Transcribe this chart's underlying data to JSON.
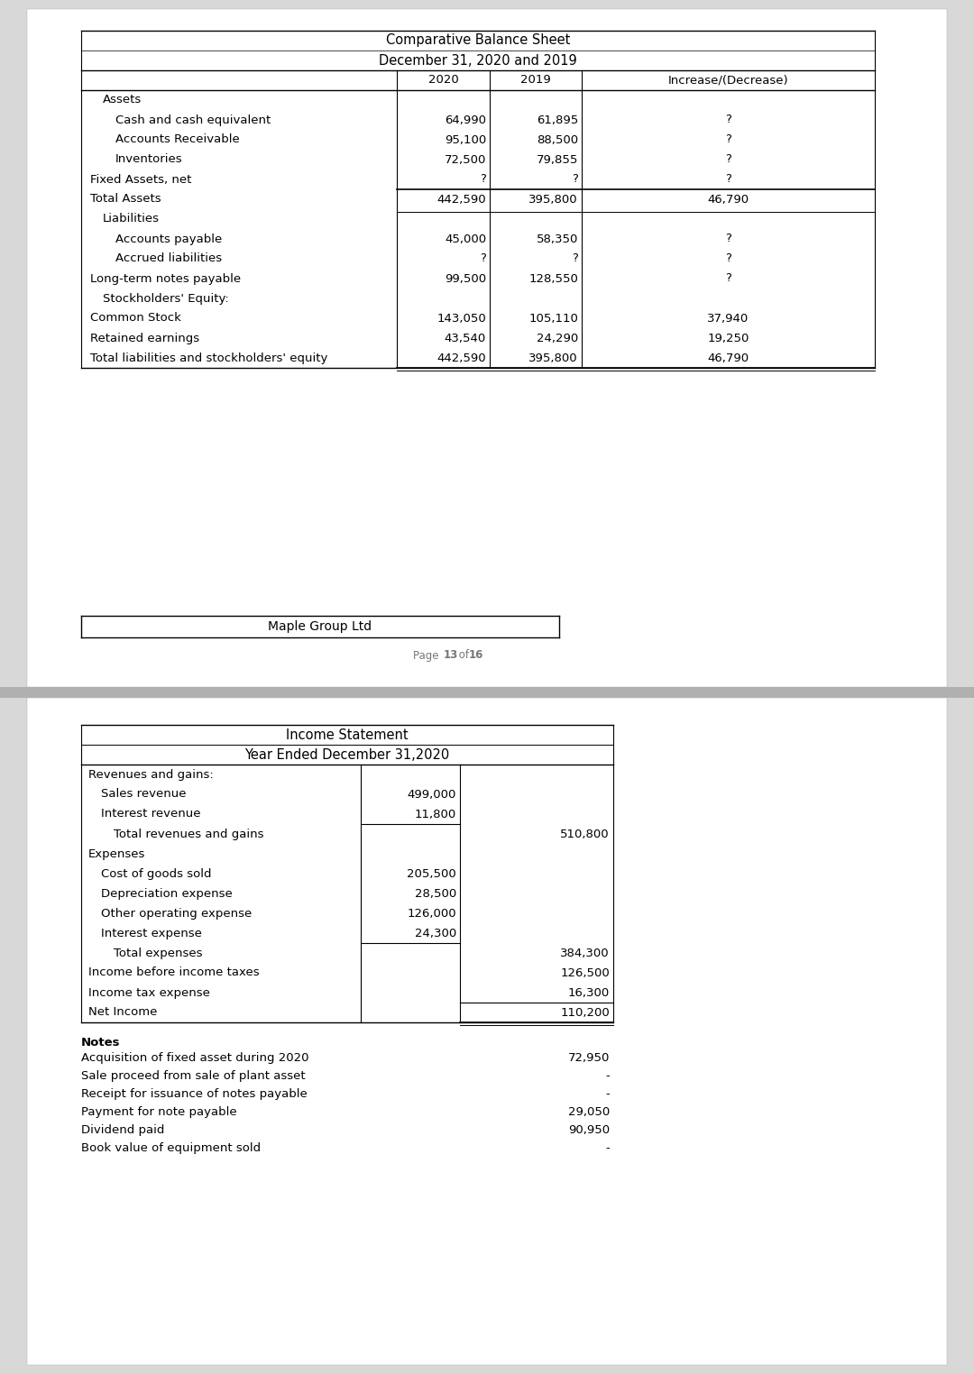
{
  "table1_title1": "Comparative Balance Sheet",
  "table1_title2": "December 31, 2020 and 2019",
  "table1_rows": [
    {
      "label": "Assets",
      "indent": 1,
      "v2020": "",
      "v2019": "",
      "vinc": "",
      "sep_before": false,
      "sep_after": false,
      "double_after": false
    },
    {
      "label": "Cash and cash equivalent",
      "indent": 2,
      "v2020": "64,990",
      "v2019": "61,895",
      "vinc": "?",
      "sep_before": false,
      "sep_after": false,
      "double_after": false
    },
    {
      "label": "Accounts Receivable",
      "indent": 2,
      "v2020": "95,100",
      "v2019": "88,500",
      "vinc": "?",
      "sep_before": false,
      "sep_after": false,
      "double_after": false
    },
    {
      "label": "Inventories",
      "indent": 2,
      "v2020": "72,500",
      "v2019": "79,855",
      "vinc": "?",
      "sep_before": false,
      "sep_after": false,
      "double_after": false
    },
    {
      "label": "Fixed Assets, net",
      "indent": 0,
      "v2020": "?",
      "v2019": "?",
      "vinc": "?",
      "sep_before": false,
      "sep_after": false,
      "double_after": false
    },
    {
      "label": "Total Assets",
      "indent": 0,
      "v2020": "442,590",
      "v2019": "395,800",
      "vinc": "46,790",
      "sep_before": true,
      "sep_after": false,
      "double_after": true
    },
    {
      "label": "Liabilities",
      "indent": 1,
      "v2020": "",
      "v2019": "",
      "vinc": "",
      "sep_before": false,
      "sep_after": false,
      "double_after": false
    },
    {
      "label": "Accounts payable",
      "indent": 2,
      "v2020": "45,000",
      "v2019": "58,350",
      "vinc": "?",
      "sep_before": false,
      "sep_after": false,
      "double_after": false
    },
    {
      "label": "Accrued liabilities",
      "indent": 2,
      "v2020": "?",
      "v2019": "?",
      "vinc": "?",
      "sep_before": false,
      "sep_after": false,
      "double_after": false
    },
    {
      "label": "Long-term notes payable",
      "indent": 0,
      "v2020": "99,500",
      "v2019": "128,550",
      "vinc": "?",
      "sep_before": false,
      "sep_after": false,
      "double_after": false
    },
    {
      "label": "Stockholders' Equity:",
      "indent": 1,
      "v2020": "",
      "v2019": "",
      "vinc": "",
      "sep_before": false,
      "sep_after": false,
      "double_after": false
    },
    {
      "label": "Common Stock",
      "indent": 0,
      "v2020": "143,050",
      "v2019": "105,110",
      "vinc": "37,940",
      "sep_before": false,
      "sep_after": false,
      "double_after": false
    },
    {
      "label": "Retained earnings",
      "indent": 0,
      "v2020": "43,540",
      "v2019": "24,290",
      "vinc": "19,250",
      "sep_before": false,
      "sep_after": false,
      "double_after": false
    },
    {
      "label": "Total liabilities and stockholders' equity",
      "indent": 0,
      "v2020": "442,590",
      "v2019": "395,800",
      "vinc": "46,790",
      "sep_before": false,
      "sep_after": true,
      "double_after": true
    }
  ],
  "footer_company": "Maple Group Ltd",
  "table2_title1": "Income Statement",
  "table2_title2": "Year Ended December 31,2020",
  "table2_rows": [
    {
      "label": "Revenues and gains:",
      "indent": 0,
      "col1": "",
      "col2": "",
      "sep1_after": false,
      "sep2_before": false,
      "sep2_after": false
    },
    {
      "label": "Sales revenue",
      "indent": 1,
      "col1": "499,000",
      "col2": "",
      "sep1_after": false,
      "sep2_before": false,
      "sep2_after": false
    },
    {
      "label": "Interest revenue",
      "indent": 1,
      "col1": "11,800",
      "col2": "",
      "sep1_after": true,
      "sep2_before": false,
      "sep2_after": false
    },
    {
      "label": "Total revenues and gains",
      "indent": 2,
      "col1": "",
      "col2": "510,800",
      "sep1_after": false,
      "sep2_before": false,
      "sep2_after": false
    },
    {
      "label": "Expenses",
      "indent": 0,
      "col1": "",
      "col2": "",
      "sep1_after": false,
      "sep2_before": false,
      "sep2_after": false
    },
    {
      "label": "Cost of goods sold",
      "indent": 1,
      "col1": "205,500",
      "col2": "",
      "sep1_after": false,
      "sep2_before": false,
      "sep2_after": false
    },
    {
      "label": "Depreciation expense",
      "indent": 1,
      "col1": "28,500",
      "col2": "",
      "sep1_after": false,
      "sep2_before": false,
      "sep2_after": false
    },
    {
      "label": "Other operating expense",
      "indent": 1,
      "col1": "126,000",
      "col2": "",
      "sep1_after": false,
      "sep2_before": false,
      "sep2_after": false
    },
    {
      "label": "Interest expense",
      "indent": 1,
      "col1": "24,300",
      "col2": "",
      "sep1_after": true,
      "sep2_before": false,
      "sep2_after": false
    },
    {
      "label": "Total expenses",
      "indent": 2,
      "col1": "",
      "col2": "384,300",
      "sep1_after": false,
      "sep2_before": false,
      "sep2_after": false
    },
    {
      "label": "Income before income taxes",
      "indent": 0,
      "col1": "",
      "col2": "126,500",
      "sep1_after": false,
      "sep2_before": false,
      "sep2_after": false
    },
    {
      "label": "Income tax expense",
      "indent": 0,
      "col1": "",
      "col2": "16,300",
      "sep1_after": false,
      "sep2_before": false,
      "sep2_after": false
    },
    {
      "label": "Net Income",
      "indent": 0,
      "col1": "",
      "col2": "110,200",
      "sep1_after": false,
      "sep2_before": true,
      "sep2_after": true
    }
  ],
  "notes_title": "Notes",
  "notes_rows": [
    {
      "label": "Acquisition of fixed asset during 2020",
      "value": "72,950"
    },
    {
      "label": "Sale proceed from sale of plant asset",
      "value": "-"
    },
    {
      "label": "Receipt for issuance of notes payable",
      "value": "-"
    },
    {
      "label": "Payment for note payable",
      "value": "29,050"
    },
    {
      "label": "Dividend paid",
      "value": "90,950"
    },
    {
      "label": "Book value of equipment sold",
      "value": "-"
    }
  ],
  "bg_color": "#d8d8d8",
  "page_color": "#ffffff",
  "sep_color": "#b0b0b0",
  "font_size": 9.5,
  "title_font_size": 10.5
}
